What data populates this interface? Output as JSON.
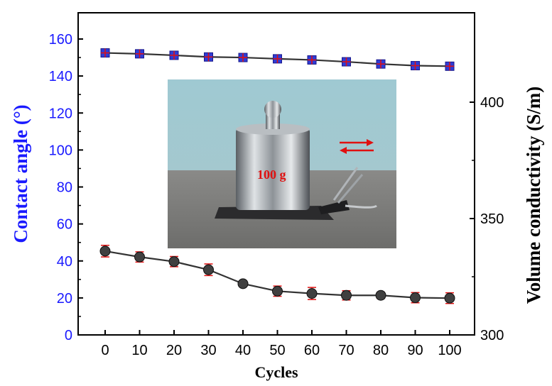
{
  "chart_data": {
    "type": "line",
    "x": [
      0,
      10,
      20,
      30,
      40,
      50,
      60,
      70,
      80,
      90,
      100
    ],
    "x_ticks": [
      "0",
      "10",
      "20",
      "30",
      "40",
      "50",
      "60",
      "70",
      "80",
      "90",
      "100"
    ],
    "xlabel": "Cycles",
    "y_left": {
      "label": "Contact angle (°)",
      "ticks": [
        "0",
        "20",
        "40",
        "60",
        "80",
        "100",
        "120",
        "140",
        "160"
      ],
      "ylim": [
        0,
        160
      ],
      "color": "#1a1aff"
    },
    "y_right": {
      "label": "Volume conductivity (S/m)",
      "ticks": [
        "300",
        "350",
        "400"
      ],
      "ylim": [
        300,
        400
      ],
      "color": "#000000"
    },
    "series": [
      {
        "axis": "left",
        "marker": "square",
        "color": "#2e3bd6",
        "values": [
          152.5,
          152,
          151.2,
          150.3,
          150,
          149.3,
          148.7,
          147.7,
          146.5,
          145.6,
          145.3
        ],
        "errors": [
          1.2,
          1.2,
          1.2,
          1.2,
          1.2,
          1.2,
          1.2,
          1.2,
          1.2,
          1.2,
          1.2
        ]
      },
      {
        "axis": "right",
        "marker": "circle",
        "color": "#404040",
        "values": [
          336,
          333.5,
          331.5,
          328,
          322,
          318.8,
          317.8,
          317,
          317,
          316,
          315.8
        ],
        "errors": [
          2.5,
          2.2,
          2.2,
          2.5,
          1.2,
          2.2,
          2.6,
          2.0,
          1.3,
          2.2,
          2.3
        ]
      }
    ],
    "error_bar_color": "#e01010",
    "grid": false,
    "inset_photo": {
      "label": "100 g",
      "arrow_color": "#e01010"
    }
  }
}
